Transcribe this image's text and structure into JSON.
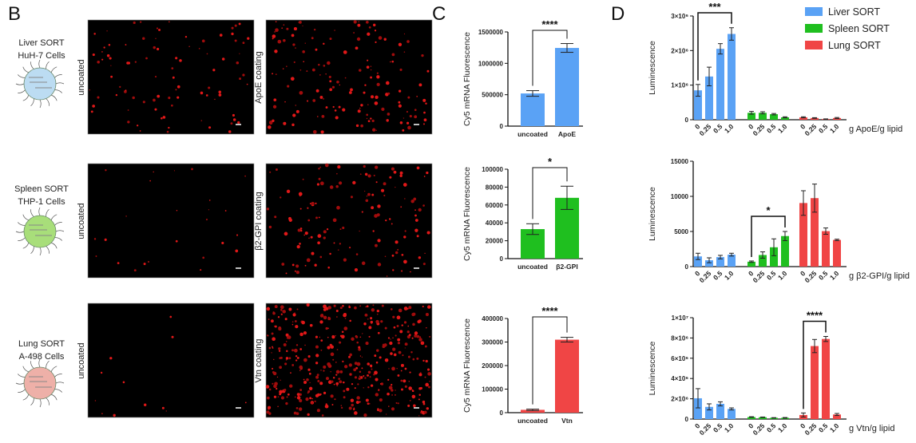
{
  "panels": {
    "b": "B",
    "c": "C",
    "d": "D"
  },
  "colors": {
    "liver": "#5aa2f5",
    "spleen": "#1fbf1f",
    "lung": "#f04545"
  },
  "rows": [
    {
      "sort": "Liver SORT",
      "cells": "HuH-7 Cells",
      "sort_color": "#3d8fdc",
      "nanoparticle_fill": "#bcdcf2",
      "image_left": "uncoated",
      "image_right": "ApoE coating"
    },
    {
      "sort": "Spleen SORT",
      "cells": "THP-1 Cells",
      "sort_color": "#2db52d",
      "nanoparticle_fill": "#a8de7a",
      "image_left": "uncoated",
      "image_right": "β2-GPI coating"
    },
    {
      "sort": "Lung SORT",
      "cells": "A-498 Cells",
      "sort_color": "#e33a3a",
      "nanoparticle_fill": "#eeb0a8",
      "image_left": "uncoated",
      "image_right": "Vtn coating"
    }
  ],
  "legend": [
    {
      "label": "Liver SORT",
      "color": "#5aa2f5"
    },
    {
      "label": "Spleen SORT",
      "color": "#1fbf1f"
    },
    {
      "label": "Lung SORT",
      "color": "#f04545"
    }
  ],
  "chart_data": [
    {
      "type": "bar",
      "panel": "C",
      "ylabel": "Cy5 mRNA Fluorescence",
      "ylim": [
        0,
        1500000
      ],
      "yticks": [
        "0",
        "500000",
        "1000000",
        "1500000"
      ],
      "ytick_values": [
        0,
        500000,
        1000000,
        1500000
      ],
      "categories": [
        "uncoated",
        "ApoE"
      ],
      "values": [
        520000,
        1245000
      ],
      "errors": [
        45000,
        70000
      ],
      "color": "#5aa2f5",
      "significance": "****"
    },
    {
      "type": "bar",
      "panel": "C",
      "ylabel": "Cy5 mRNA Fluorescence",
      "ylim": [
        0,
        100000
      ],
      "yticks": [
        "0",
        "20000",
        "40000",
        "60000",
        "80000",
        "100000"
      ],
      "ytick_values": [
        0,
        20000,
        40000,
        60000,
        80000,
        100000
      ],
      "categories": [
        "uncoated",
        "β2-GPI"
      ],
      "values": [
        33000,
        68000
      ],
      "errors": [
        6000,
        13000
      ],
      "color": "#1fbf1f",
      "significance": "*"
    },
    {
      "type": "bar",
      "panel": "C",
      "ylabel": "Cy5 mRNA Fluorescence",
      "ylim": [
        0,
        400000
      ],
      "yticks": [
        "0",
        "100000",
        "200000",
        "300000",
        "400000"
      ],
      "ytick_values": [
        0,
        100000,
        200000,
        300000,
        400000
      ],
      "categories": [
        "uncoated",
        "Vtn"
      ],
      "values": [
        12000,
        310000
      ],
      "errors": [
        3000,
        10000
      ],
      "color": "#f04545",
      "significance": "****"
    },
    {
      "type": "bar",
      "panel": "D",
      "ylabel": "Luminescence",
      "xlabel": "g ApoE/g lipid",
      "ylim": [
        0,
        3000000
      ],
      "yticks": [
        "0",
        "1×10⁶",
        "2×10⁶",
        "3×10⁶"
      ],
      "ytick_values": [
        0,
        1000000,
        2000000,
        3000000
      ],
      "categories": [
        "0",
        "0.25",
        "0.5",
        "1.0"
      ],
      "series": [
        {
          "name": "Liver SORT",
          "values": [
            850000,
            1250000,
            2050000,
            2480000
          ],
          "errors": [
            170000,
            270000,
            150000,
            180000
          ]
        },
        {
          "name": "Spleen SORT",
          "values": [
            200000,
            200000,
            160000,
            70000
          ],
          "errors": [
            40000,
            30000,
            20000,
            15000
          ]
        },
        {
          "name": "Lung SORT",
          "values": [
            70000,
            50000,
            20000,
            50000
          ],
          "errors": [
            15000,
            10000,
            5000,
            15000
          ]
        }
      ],
      "significance": "***",
      "significance_series": 0,
      "significance_between": [
        "0",
        "1.0"
      ]
    },
    {
      "type": "bar",
      "panel": "D",
      "ylabel": "Luminescence",
      "xlabel": "g β2-GPI/g lipid",
      "ylim": [
        0,
        15000
      ],
      "yticks": [
        "0",
        "5000",
        "10000",
        "15000"
      ],
      "ytick_values": [
        0,
        5000,
        10000,
        15000
      ],
      "categories": [
        "0",
        "0.25",
        "0.5",
        "1.0"
      ],
      "series": [
        {
          "name": "Liver SORT",
          "values": [
            1450,
            900,
            1350,
            1700
          ],
          "errors": [
            450,
            350,
            250,
            200
          ]
        },
        {
          "name": "Spleen SORT",
          "values": [
            700,
            1650,
            2750,
            4350
          ],
          "errors": [
            100,
            450,
            1200,
            650
          ]
        },
        {
          "name": "Lung SORT",
          "values": [
            9050,
            9750,
            5050,
            3800
          ],
          "errors": [
            1750,
            2000,
            450,
            100
          ]
        }
      ],
      "significance": "*",
      "significance_series": 1,
      "significance_between": [
        "0",
        "1.0"
      ]
    },
    {
      "type": "bar",
      "panel": "D",
      "ylabel": "Luminescence",
      "xlabel": "g Vtn/g lipid",
      "ylim": [
        0,
        10000000
      ],
      "yticks": [
        "0",
        "2×10⁶",
        "4×10⁶",
        "6×10⁶",
        "8×10⁶",
        "1×10⁷"
      ],
      "ytick_values": [
        0,
        2000000,
        4000000,
        6000000,
        8000000,
        10000000
      ],
      "categories": [
        "0",
        "0.25",
        "0.5",
        "1.0"
      ],
      "series": [
        {
          "name": "Liver SORT",
          "values": [
            2050000,
            1200000,
            1500000,
            1000000
          ],
          "errors": [
            950000,
            300000,
            200000,
            100000
          ]
        },
        {
          "name": "Spleen SORT",
          "values": [
            200000,
            180000,
            120000,
            120000
          ],
          "errors": [
            30000,
            20000,
            20000,
            30000
          ]
        },
        {
          "name": "Lung SORT",
          "values": [
            400000,
            7200000,
            7900000,
            450000
          ],
          "errors": [
            200000,
            650000,
            250000,
            100000
          ]
        }
      ],
      "significance": "****",
      "significance_series": 2,
      "significance_between": [
        "0",
        "0.5"
      ]
    }
  ]
}
